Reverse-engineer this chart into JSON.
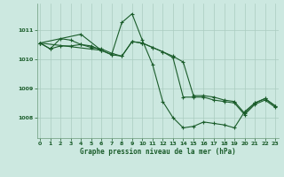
{
  "xlabel": "Graphe pression niveau de la mer (hPa)",
  "bg_color": "#cce8e0",
  "grid_color": "#aaccbf",
  "line_color": "#1a5c2a",
  "ylim": [
    1007.3,
    1011.9
  ],
  "xlim": [
    -0.3,
    23.3
  ],
  "yticks": [
    1008,
    1009,
    1010,
    1011
  ],
  "xticks": [
    0,
    1,
    2,
    3,
    4,
    5,
    6,
    7,
    8,
    9,
    10,
    11,
    12,
    13,
    14,
    15,
    16,
    17,
    18,
    19,
    20,
    21,
    22,
    23
  ],
  "line1_x": [
    0,
    1,
    2,
    3,
    4,
    5,
    6,
    7,
    8,
    9,
    10,
    11,
    12,
    13,
    14,
    15,
    16,
    17,
    18,
    19,
    20,
    21,
    22,
    23
  ],
  "line1_y": [
    1010.55,
    1010.35,
    1010.45,
    1010.45,
    1010.5,
    1010.4,
    1010.35,
    1010.2,
    1010.1,
    1010.6,
    1010.55,
    1010.4,
    1010.25,
    1010.1,
    1009.9,
    1008.75,
    1008.75,
    1008.7,
    1008.6,
    1008.55,
    1008.15,
    1008.5,
    1008.65,
    1008.4
  ],
  "line2_x": [
    0,
    1,
    2,
    3,
    4,
    5,
    6,
    7,
    8,
    9,
    10,
    11,
    12,
    13,
    14,
    15,
    16,
    17,
    18,
    19,
    20,
    21,
    22,
    23
  ],
  "line2_y": [
    1010.55,
    1010.35,
    1010.7,
    1010.65,
    1010.5,
    1010.45,
    1010.3,
    1010.15,
    1011.25,
    1011.55,
    1010.65,
    1009.82,
    1008.55,
    1008.0,
    1007.65,
    1007.7,
    1007.85,
    1007.8,
    1007.75,
    1007.65,
    1008.2,
    1008.5,
    1008.65,
    1008.4
  ],
  "line3_x": [
    0,
    6,
    7,
    8,
    9,
    10,
    11,
    12,
    13,
    14,
    15,
    16,
    17,
    18,
    19,
    20,
    21,
    22,
    23
  ],
  "line3_y": [
    1010.55,
    1010.3,
    1010.15,
    1010.1,
    1010.6,
    1010.55,
    1010.4,
    1010.25,
    1010.05,
    1008.7,
    1008.7,
    1008.7,
    1008.6,
    1008.55,
    1008.5,
    1008.1,
    1008.45,
    1008.6,
    1008.35
  ],
  "line4_x": [
    0,
    4,
    6
  ],
  "line4_y": [
    1010.55,
    1010.85,
    1010.3
  ]
}
